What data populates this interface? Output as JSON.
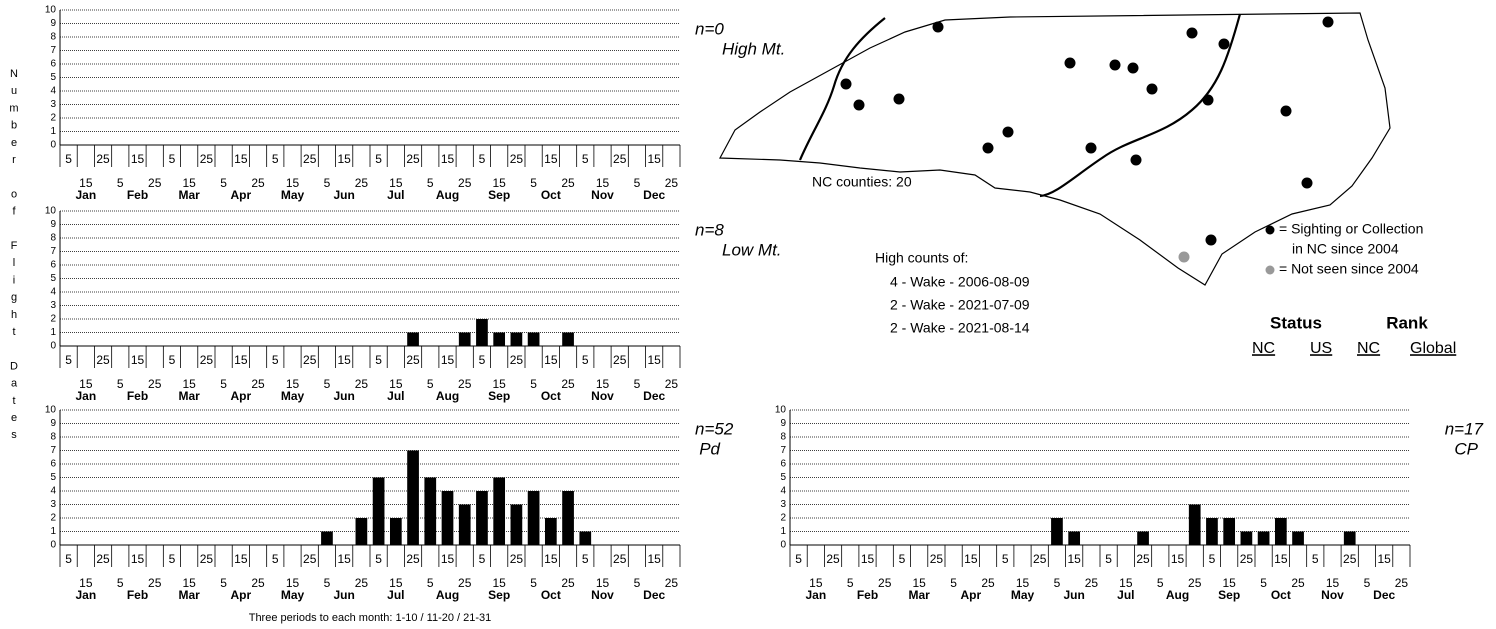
{
  "y_axis_label": "Number of Flight Dates",
  "footnote": "Three periods to each month: 1-10 / 11-20 / 21-31",
  "map": {
    "county_label": "NC counties: 20"
  },
  "legend": {
    "sighting": [
      "= Sighting or Collection",
      "in NC since 2004"
    ],
    "not_seen": "= Not seen since 2004"
  },
  "high_counts": {
    "title": "High counts of:",
    "entries": [
      "4 - Wake - 2006-08-09",
      "2 - Wake - 2021-07-09",
      "2 - Wake - 2021-08-14"
    ]
  },
  "status_rank": {
    "status": "Status",
    "rank": "Rank",
    "status_cols": [
      "NC",
      "US"
    ],
    "rank_cols": [
      "NC",
      "Global"
    ]
  },
  "chart_data": [
    {
      "type": "bar",
      "title": "High Mt.",
      "count_label": "n=0",
      "color": "#000000",
      "grid": true,
      "categories": [
        "5",
        "15",
        "25",
        "5",
        "15",
        "25",
        "5",
        "15",
        "25",
        "5",
        "15",
        "25",
        "5",
        "15",
        "25",
        "5",
        "15",
        "25",
        "5",
        "15",
        "25",
        "5",
        "15",
        "25",
        "5",
        "15",
        "25",
        "5",
        "15",
        "25",
        "5",
        "15",
        "25",
        "5",
        "15",
        "25"
      ],
      "months": [
        "Jan",
        "Feb",
        "Mar",
        "Apr",
        "May",
        "Jun",
        "Jul",
        "Aug",
        "Sep",
        "Oct",
        "Nov",
        "Dec"
      ],
      "values": [
        0,
        0,
        0,
        0,
        0,
        0,
        0,
        0,
        0,
        0,
        0,
        0,
        0,
        0,
        0,
        0,
        0,
        0,
        0,
        0,
        0,
        0,
        0,
        0,
        0,
        0,
        0,
        0,
        0,
        0,
        0,
        0,
        0,
        0,
        0,
        0
      ],
      "ylim": [
        0,
        10
      ],
      "yticks": [
        0,
        1,
        2,
        3,
        4,
        5,
        6,
        7,
        8,
        9,
        10
      ]
    },
    {
      "type": "bar",
      "title": "Low Mt.",
      "count_label": "n=8",
      "color": "#000000",
      "grid": true,
      "categories": [
        "5",
        "15",
        "25",
        "5",
        "15",
        "25",
        "5",
        "15",
        "25",
        "5",
        "15",
        "25",
        "5",
        "15",
        "25",
        "5",
        "15",
        "25",
        "5",
        "15",
        "25",
        "5",
        "15",
        "25",
        "5",
        "15",
        "25",
        "5",
        "15",
        "25",
        "5",
        "15",
        "25",
        "5",
        "15",
        "25"
      ],
      "months": [
        "Jan",
        "Feb",
        "Mar",
        "Apr",
        "May",
        "Jun",
        "Jul",
        "Aug",
        "Sep",
        "Oct",
        "Nov",
        "Dec"
      ],
      "values": [
        0,
        0,
        0,
        0,
        0,
        0,
        0,
        0,
        0,
        0,
        0,
        0,
        0,
        0,
        0,
        0,
        0,
        0,
        0,
        0,
        1,
        0,
        0,
        1,
        2,
        1,
        1,
        1,
        0,
        1,
        0,
        0,
        0,
        0,
        0,
        0
      ],
      "ylim": [
        0,
        10
      ],
      "yticks": [
        0,
        1,
        2,
        3,
        4,
        5,
        6,
        7,
        8,
        9,
        10
      ]
    },
    {
      "type": "bar",
      "title": "Pd",
      "count_label": "n=52",
      "color": "#000000",
      "grid": true,
      "categories": [
        "5",
        "15",
        "25",
        "5",
        "15",
        "25",
        "5",
        "15",
        "25",
        "5",
        "15",
        "25",
        "5",
        "15",
        "25",
        "5",
        "15",
        "25",
        "5",
        "15",
        "25",
        "5",
        "15",
        "25",
        "5",
        "15",
        "25",
        "5",
        "15",
        "25",
        "5",
        "15",
        "25",
        "5",
        "15",
        "25"
      ],
      "months": [
        "Jan",
        "Feb",
        "Mar",
        "Apr",
        "May",
        "Jun",
        "Jul",
        "Aug",
        "Sep",
        "Oct",
        "Nov",
        "Dec"
      ],
      "values": [
        0,
        0,
        0,
        0,
        0,
        0,
        0,
        0,
        0,
        0,
        0,
        0,
        0,
        0,
        0,
        1,
        0,
        2,
        5,
        2,
        7,
        5,
        4,
        3,
        4,
        5,
        3,
        4,
        2,
        4,
        1,
        0,
        0,
        0,
        0,
        0
      ],
      "ylim": [
        0,
        10
      ],
      "yticks": [
        0,
        1,
        2,
        3,
        4,
        5,
        6,
        7,
        8,
        9,
        10
      ]
    },
    {
      "type": "bar",
      "title": "CP",
      "count_label": "n=17",
      "color": "#000000",
      "grid": true,
      "categories": [
        "5",
        "15",
        "25",
        "5",
        "15",
        "25",
        "5",
        "15",
        "25",
        "5",
        "15",
        "25",
        "5",
        "15",
        "25",
        "5",
        "15",
        "25",
        "5",
        "15",
        "25",
        "5",
        "15",
        "25",
        "5",
        "15",
        "25",
        "5",
        "15",
        "25",
        "5",
        "15",
        "25",
        "5",
        "15",
        "25"
      ],
      "months": [
        "Jan",
        "Feb",
        "Mar",
        "Apr",
        "May",
        "Jun",
        "Jul",
        "Aug",
        "Sep",
        "Oct",
        "Nov",
        "Dec"
      ],
      "values": [
        0,
        0,
        0,
        0,
        0,
        0,
        0,
        0,
        0,
        0,
        0,
        0,
        0,
        0,
        0,
        2,
        1,
        0,
        0,
        0,
        1,
        0,
        0,
        3,
        2,
        2,
        1,
        1,
        2,
        1,
        0,
        0,
        1,
        0,
        0,
        0
      ],
      "ylim": [
        0,
        10
      ],
      "yticks": [
        0,
        1,
        2,
        3,
        4,
        5,
        6,
        7,
        8,
        9,
        10
      ]
    }
  ]
}
